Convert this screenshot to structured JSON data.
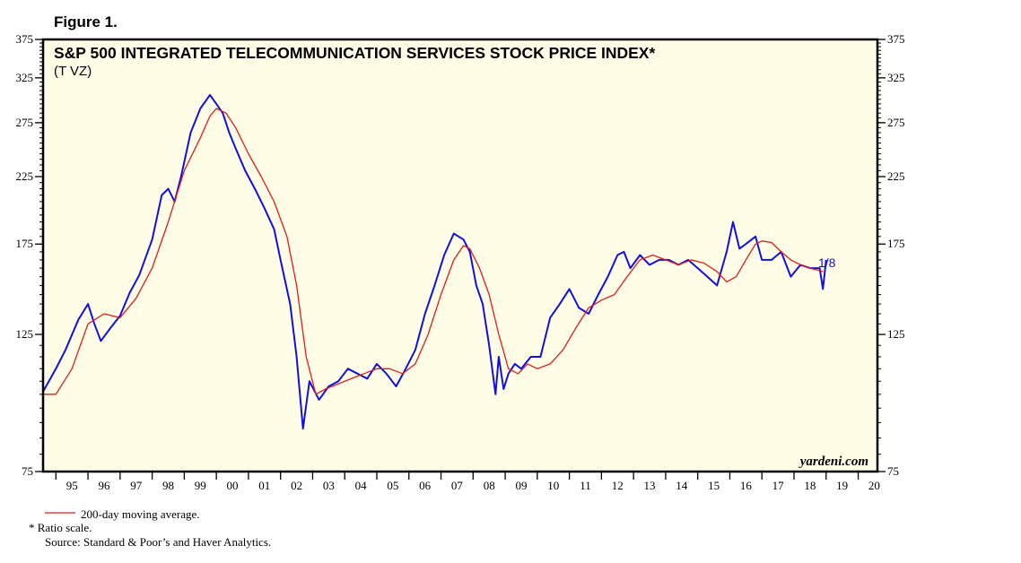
{
  "figure_label": "Figure 1.",
  "colors": {
    "background": "#FFFDE6",
    "series": "#1010E6",
    "average": "#E61A1A",
    "frame": "#000000"
  },
  "chart_data": {
    "type": "line",
    "title": "S&P 500 INTEGRATED TELECOMMUNICATION SERVICES STOCK PRICE INDEX*",
    "subtitle": "(T VZ)",
    "scale": "log",
    "ylim": [
      75,
      375
    ],
    "xlim": [
      1994.6,
      2020.6
    ],
    "y_ticks": [
      75,
      125,
      175,
      225,
      275,
      325,
      375
    ],
    "x_tick_labels": [
      "95",
      "96",
      "97",
      "98",
      "99",
      "00",
      "01",
      "02",
      "03",
      "04",
      "05",
      "06",
      "07",
      "08",
      "09",
      "10",
      "11",
      "12",
      "13",
      "14",
      "15",
      "16",
      "17",
      "18",
      "19",
      "20"
    ],
    "end_label": "1/8",
    "brand": "yardeni.com",
    "legend": "200-day moving average.",
    "footnote": "*  Ratio scale.",
    "source": "Source: Standard & Poor’s and Haver Analytics.",
    "series": [
      {
        "name": "Index",
        "x": [
          1994.6,
          1995.0,
          1995.3,
          1995.7,
          1996.0,
          1996.2,
          1996.4,
          1996.7,
          1997.0,
          1997.3,
          1997.6,
          1998.0,
          1998.3,
          1998.5,
          1998.7,
          1998.9,
          1999.2,
          1999.5,
          1999.8,
          2000.0,
          2000.2,
          2000.4,
          2000.6,
          2000.9,
          2001.2,
          2001.5,
          2001.8,
          2002.0,
          2002.3,
          2002.5,
          2002.7,
          2002.9,
          2003.2,
          2003.5,
          2003.8,
          2004.1,
          2004.4,
          2004.7,
          2005.0,
          2005.3,
          2005.6,
          2005.9,
          2006.2,
          2006.5,
          2006.8,
          2007.1,
          2007.4,
          2007.7,
          2007.9,
          2008.1,
          2008.3,
          2008.5,
          2008.7,
          2008.8,
          2008.95,
          2009.1,
          2009.3,
          2009.5,
          2009.8,
          2010.1,
          2010.4,
          2010.7,
          2011.0,
          2011.3,
          2011.6,
          2011.9,
          2012.2,
          2012.5,
          2012.7,
          2012.9,
          2013.2,
          2013.5,
          2013.8,
          2014.1,
          2014.4,
          2014.7,
          2015.0,
          2015.3,
          2015.6,
          2015.9,
          2016.1,
          2016.3,
          2016.5,
          2016.8,
          2017.0,
          2017.3,
          2017.6,
          2017.9,
          2018.2,
          2018.5,
          2018.8,
          2018.9,
          2019.0
        ],
        "values": [
          101,
          110,
          118,
          132,
          140,
          130,
          122,
          128,
          134,
          146,
          156,
          178,
          210,
          215,
          205,
          225,
          265,
          290,
          305,
          295,
          285,
          265,
          250,
          230,
          215,
          200,
          185,
          165,
          140,
          115,
          88,
          105,
          98,
          103,
          105,
          110,
          108,
          106,
          112,
          108,
          103,
          110,
          118,
          135,
          150,
          168,
          182,
          178,
          170,
          150,
          140,
          120,
          100,
          115,
          102,
          108,
          112,
          110,
          115,
          115,
          133,
          140,
          148,
          138,
          135,
          145,
          155,
          168,
          170,
          160,
          168,
          162,
          165,
          165,
          162,
          165,
          160,
          155,
          150,
          170,
          190,
          172,
          175,
          180,
          165,
          165,
          170,
          155,
          162,
          160,
          160,
          148,
          165
        ]
      },
      {
        "name": "200-day moving average",
        "x": [
          1994.6,
          1995.0,
          1995.5,
          1996.0,
          1996.5,
          1997.0,
          1997.5,
          1998.0,
          1998.5,
          1999.0,
          1999.5,
          1999.8,
          2000.0,
          2000.3,
          2000.6,
          2001.0,
          2001.4,
          2001.8,
          2002.2,
          2002.5,
          2002.8,
          2003.1,
          2003.4,
          2003.8,
          2004.2,
          2004.6,
          2005.0,
          2005.4,
          2005.8,
          2006.2,
          2006.6,
          2007.0,
          2007.4,
          2007.7,
          2007.9,
          2008.2,
          2008.5,
          2008.8,
          2009.1,
          2009.4,
          2009.7,
          2010.0,
          2010.4,
          2010.8,
          2011.2,
          2011.6,
          2012.0,
          2012.4,
          2012.8,
          2013.2,
          2013.6,
          2014.0,
          2014.4,
          2014.8,
          2015.2,
          2015.6,
          2015.9,
          2016.2,
          2016.5,
          2016.8,
          2017.0,
          2017.3,
          2017.6,
          2017.9,
          2018.2,
          2018.5,
          2018.9
        ],
        "values": [
          100,
          100,
          110,
          130,
          135,
          133,
          143,
          160,
          190,
          230,
          260,
          282,
          290,
          285,
          270,
          245,
          225,
          205,
          180,
          150,
          115,
          100,
          102,
          104,
          106,
          108,
          110,
          110,
          108,
          112,
          125,
          145,
          165,
          174,
          172,
          160,
          145,
          125,
          110,
          108,
          112,
          110,
          112,
          118,
          128,
          138,
          142,
          145,
          155,
          165,
          168,
          165,
          162,
          165,
          163,
          158,
          152,
          155,
          165,
          175,
          177,
          176,
          170,
          165,
          162,
          160,
          158
        ]
      }
    ]
  }
}
